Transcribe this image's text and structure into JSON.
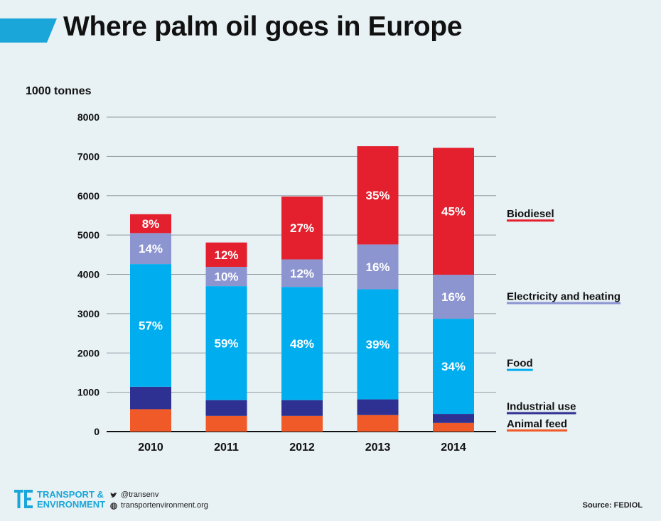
{
  "header": {
    "title": "Where palm oil goes in Europe"
  },
  "chart_data": {
    "type": "bar",
    "stacked": true,
    "ylabel": "1000 tonnes",
    "ylim": [
      0,
      8000
    ],
    "yticks": [
      0,
      1000,
      2000,
      3000,
      4000,
      5000,
      6000,
      7000,
      8000
    ],
    "categories": [
      "2010",
      "2011",
      "2012",
      "2013",
      "2014"
    ],
    "grid": true,
    "legend_position": "right",
    "series": [
      {
        "name": "Animal feed",
        "color": "#f05a28",
        "values": [
          570,
          400,
          400,
          420,
          220
        ],
        "labels": [
          "",
          "",
          "",
          "",
          ""
        ]
      },
      {
        "name": "Industrial use",
        "color": "#2e3192",
        "values": [
          570,
          400,
          400,
          400,
          230
        ],
        "labels": [
          "",
          "",
          "",
          "",
          ""
        ]
      },
      {
        "name": "Food",
        "color": "#00aeef",
        "values": [
          3120,
          2900,
          2880,
          2800,
          2420
        ],
        "labels": [
          "57%",
          "59%",
          "48%",
          "39%",
          "34%"
        ]
      },
      {
        "name": "Electricity and heating",
        "color": "#8c95d0",
        "values": [
          790,
          490,
          700,
          1140,
          1120
        ],
        "labels": [
          "14%",
          "10%",
          "12%",
          "16%",
          "16%"
        ]
      },
      {
        "name": "Biodiesel",
        "color": "#e4202e",
        "values": [
          480,
          620,
          1600,
          2500,
          3230
        ],
        "labels": [
          "8%",
          "12%",
          "27%",
          "35%",
          "45%"
        ]
      }
    ],
    "legend": [
      {
        "label": "Biodiesel",
        "color": "#e4202e",
        "value": 5450
      },
      {
        "label": "Electricity and heating",
        "color": "#8c95d0",
        "value": 3350
      },
      {
        "label": "Food",
        "color": "#00aeef",
        "value": 1650
      },
      {
        "label": "Industrial use",
        "color": "#2e3192",
        "value": 550
      },
      {
        "label": "Animal feed",
        "color": "#f05a28",
        "value": 110
      }
    ]
  },
  "footer": {
    "brand_line1": "TRANSPORT &",
    "brand_line2": "ENVIRONMENT",
    "twitter": "@transenv",
    "website": "transportenvironment.org",
    "source": "Source: FEDIOL"
  },
  "colors": {
    "accent": "#1aa6d9",
    "background": "#e8f1f4"
  }
}
